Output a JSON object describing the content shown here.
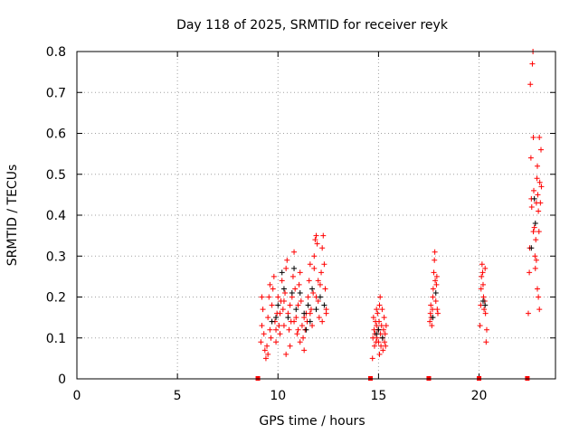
{
  "chart_data": {
    "type": "scatter",
    "title": "Day 118 of 2025, SRMTID for receiver reyk",
    "xlabel": "GPS time / hours",
    "ylabel": "SRMTID / TECUs",
    "xlim": [
      0,
      23.8
    ],
    "ylim": [
      0,
      0.8
    ],
    "xticks": [
      0,
      5,
      10,
      15,
      20
    ],
    "yticks": [
      0,
      0.1,
      0.2,
      0.3,
      0.4,
      0.5,
      0.6,
      0.7,
      0.8
    ],
    "grid": true,
    "legend": "none",
    "marker": "+",
    "colors": {
      "points": "#ff0000",
      "dark_points": "#000000",
      "gaps": "#ff0000"
    },
    "gap_markers_x": [
      9.0,
      14.6,
      17.5,
      20.0,
      22.4
    ],
    "series": [
      {
        "color": "#ff0000",
        "points": [
          [
            9.15,
            0.09
          ],
          [
            9.2,
            0.13
          ],
          [
            9.25,
            0.17
          ],
          [
            9.3,
            0.11
          ],
          [
            9.35,
            0.07
          ],
          [
            9.4,
            0.05
          ],
          [
            9.45,
            0.08
          ],
          [
            9.5,
            0.15
          ],
          [
            9.55,
            0.2
          ],
          [
            9.6,
            0.12
          ],
          [
            9.65,
            0.1
          ],
          [
            9.7,
            0.18
          ],
          [
            9.75,
            0.22
          ],
          [
            9.8,
            0.25
          ],
          [
            9.85,
            0.14
          ],
          [
            9.9,
            0.09
          ],
          [
            9.95,
            0.16
          ],
          [
            10.0,
            0.2
          ],
          [
            10.05,
            0.13
          ],
          [
            10.1,
            0.11
          ],
          [
            10.15,
            0.19
          ],
          [
            10.2,
            0.24
          ],
          [
            10.25,
            0.17
          ],
          [
            10.3,
            0.13
          ],
          [
            10.35,
            0.21
          ],
          [
            10.4,
            0.27
          ],
          [
            10.45,
            0.29
          ],
          [
            10.5,
            0.16
          ],
          [
            10.55,
            0.12
          ],
          [
            10.6,
            0.08
          ],
          [
            10.65,
            0.14
          ],
          [
            10.7,
            0.2
          ],
          [
            10.75,
            0.25
          ],
          [
            10.8,
            0.31
          ],
          [
            10.85,
            0.22
          ],
          [
            10.9,
            0.15
          ],
          [
            10.95,
            0.11
          ],
          [
            11.0,
            0.18
          ],
          [
            11.05,
            0.23
          ],
          [
            11.1,
            0.26
          ],
          [
            11.15,
            0.19
          ],
          [
            11.2,
            0.13
          ],
          [
            11.25,
            0.1
          ],
          [
            11.3,
            0.07
          ],
          [
            11.35,
            0.12
          ],
          [
            11.4,
            0.16
          ],
          [
            11.45,
            0.14
          ],
          [
            11.5,
            0.2
          ],
          [
            11.55,
            0.24
          ],
          [
            11.6,
            0.28
          ],
          [
            11.65,
            0.17
          ],
          [
            11.7,
            0.13
          ],
          [
            11.75,
            0.21
          ],
          [
            11.8,
            0.3
          ],
          [
            11.85,
            0.34
          ],
          [
            11.9,
            0.35
          ],
          [
            11.95,
            0.33
          ],
          [
            12.0,
            0.19
          ],
          [
            12.05,
            0.15
          ],
          [
            12.1,
            0.23
          ],
          [
            12.15,
            0.26
          ],
          [
            12.2,
            0.32
          ],
          [
            12.25,
            0.35
          ],
          [
            12.3,
            0.28
          ],
          [
            12.35,
            0.22
          ],
          [
            12.4,
            0.17
          ],
          [
            9.2,
            0.2
          ],
          [
            9.6,
            0.23
          ],
          [
            9.9,
            0.12
          ],
          [
            10.1,
            0.16
          ],
          [
            10.3,
            0.19
          ],
          [
            10.6,
            0.18
          ],
          [
            10.8,
            0.14
          ],
          [
            11.0,
            0.12
          ],
          [
            11.3,
            0.15
          ],
          [
            11.6,
            0.16
          ],
          [
            11.9,
            0.2
          ],
          [
            12.2,
            0.14
          ],
          [
            12.0,
            0.24
          ],
          [
            11.8,
            0.27
          ],
          [
            10.4,
            0.06
          ],
          [
            9.5,
            0.06
          ],
          [
            11.1,
            0.09
          ],
          [
            12.4,
            0.16
          ],
          [
            14.7,
            0.05
          ],
          [
            14.72,
            0.1
          ],
          [
            14.75,
            0.15
          ],
          [
            14.78,
            0.12
          ],
          [
            14.8,
            0.08
          ],
          [
            14.82,
            0.11
          ],
          [
            14.85,
            0.14
          ],
          [
            14.88,
            0.09
          ],
          [
            14.9,
            0.13
          ],
          [
            14.92,
            0.1
          ],
          [
            14.95,
            0.16
          ],
          [
            14.98,
            0.12
          ],
          [
            15.0,
            0.09
          ],
          [
            15.03,
            0.14
          ],
          [
            15.05,
            0.18
          ],
          [
            15.08,
            0.2
          ],
          [
            15.1,
            0.11
          ],
          [
            15.12,
            0.08
          ],
          [
            15.15,
            0.13
          ],
          [
            15.18,
            0.17
          ],
          [
            15.2,
            0.1
          ],
          [
            15.22,
            0.07
          ],
          [
            15.25,
            0.12
          ],
          [
            15.28,
            0.15
          ],
          [
            15.3,
            0.09
          ],
          [
            15.33,
            0.11
          ],
          [
            15.35,
            0.08
          ],
          [
            15.38,
            0.13
          ],
          [
            14.9,
            0.17
          ],
          [
            15.05,
            0.06
          ],
          [
            17.55,
            0.14
          ],
          [
            17.58,
            0.16
          ],
          [
            17.6,
            0.18
          ],
          [
            17.62,
            0.15
          ],
          [
            17.65,
            0.13
          ],
          [
            17.68,
            0.17
          ],
          [
            17.7,
            0.2
          ],
          [
            17.72,
            0.22
          ],
          [
            17.75,
            0.26
          ],
          [
            17.78,
            0.29
          ],
          [
            17.8,
            0.31
          ],
          [
            17.82,
            0.24
          ],
          [
            17.85,
            0.19
          ],
          [
            17.88,
            0.23
          ],
          [
            17.9,
            0.25
          ],
          [
            17.92,
            0.17
          ],
          [
            17.95,
            0.16
          ],
          [
            20.05,
            0.13
          ],
          [
            20.08,
            0.18
          ],
          [
            20.1,
            0.22
          ],
          [
            20.12,
            0.25
          ],
          [
            20.15,
            0.28
          ],
          [
            20.18,
            0.26
          ],
          [
            20.2,
            0.23
          ],
          [
            20.22,
            0.2
          ],
          [
            20.25,
            0.17
          ],
          [
            20.28,
            0.19
          ],
          [
            20.3,
            0.27
          ],
          [
            20.32,
            0.16
          ],
          [
            20.35,
            0.09
          ],
          [
            20.38,
            0.12
          ],
          [
            22.45,
            0.16
          ],
          [
            22.5,
            0.26
          ],
          [
            22.52,
            0.32
          ],
          [
            22.55,
            0.72
          ],
          [
            22.58,
            0.54
          ],
          [
            22.6,
            0.44
          ],
          [
            22.62,
            0.42
          ],
          [
            22.65,
            0.77
          ],
          [
            22.68,
            0.8
          ],
          [
            22.7,
            0.59
          ],
          [
            22.72,
            0.46
          ],
          [
            22.75,
            0.37
          ],
          [
            22.78,
            0.3
          ],
          [
            22.8,
            0.27
          ],
          [
            22.82,
            0.34
          ],
          [
            22.85,
            0.43
          ],
          [
            22.88,
            0.49
          ],
          [
            22.9,
            0.52
          ],
          [
            22.92,
            0.45
          ],
          [
            22.95,
            0.41
          ],
          [
            22.98,
            0.36
          ],
          [
            23.0,
            0.59
          ],
          [
            23.02,
            0.48
          ],
          [
            23.05,
            0.43
          ],
          [
            23.08,
            0.56
          ],
          [
            23.1,
            0.47
          ],
          [
            22.9,
            0.22
          ],
          [
            22.95,
            0.2
          ],
          [
            23.0,
            0.17
          ],
          [
            22.7,
            0.36
          ],
          [
            22.85,
            0.29
          ]
        ]
      },
      {
        "color": "#000000",
        "points": [
          [
            9.7,
            0.14
          ],
          [
            10.0,
            0.18
          ],
          [
            10.3,
            0.22
          ],
          [
            10.5,
            0.15
          ],
          [
            10.7,
            0.21
          ],
          [
            10.9,
            0.17
          ],
          [
            11.1,
            0.21
          ],
          [
            11.3,
            0.16
          ],
          [
            11.5,
            0.18
          ],
          [
            11.7,
            0.22
          ],
          [
            11.9,
            0.17
          ],
          [
            12.1,
            0.2
          ],
          [
            12.3,
            0.18
          ],
          [
            10.2,
            0.26
          ],
          [
            11.4,
            0.12
          ],
          [
            10.8,
            0.27
          ],
          [
            11.6,
            0.14
          ],
          [
            9.9,
            0.15
          ],
          [
            15.0,
            0.12
          ],
          [
            15.2,
            0.1
          ],
          [
            14.9,
            0.11
          ],
          [
            17.7,
            0.15
          ],
          [
            17.85,
            0.21
          ],
          [
            20.2,
            0.19
          ],
          [
            20.3,
            0.18
          ],
          [
            22.6,
            0.32
          ],
          [
            22.8,
            0.38
          ],
          [
            22.75,
            0.44
          ]
        ]
      }
    ]
  }
}
